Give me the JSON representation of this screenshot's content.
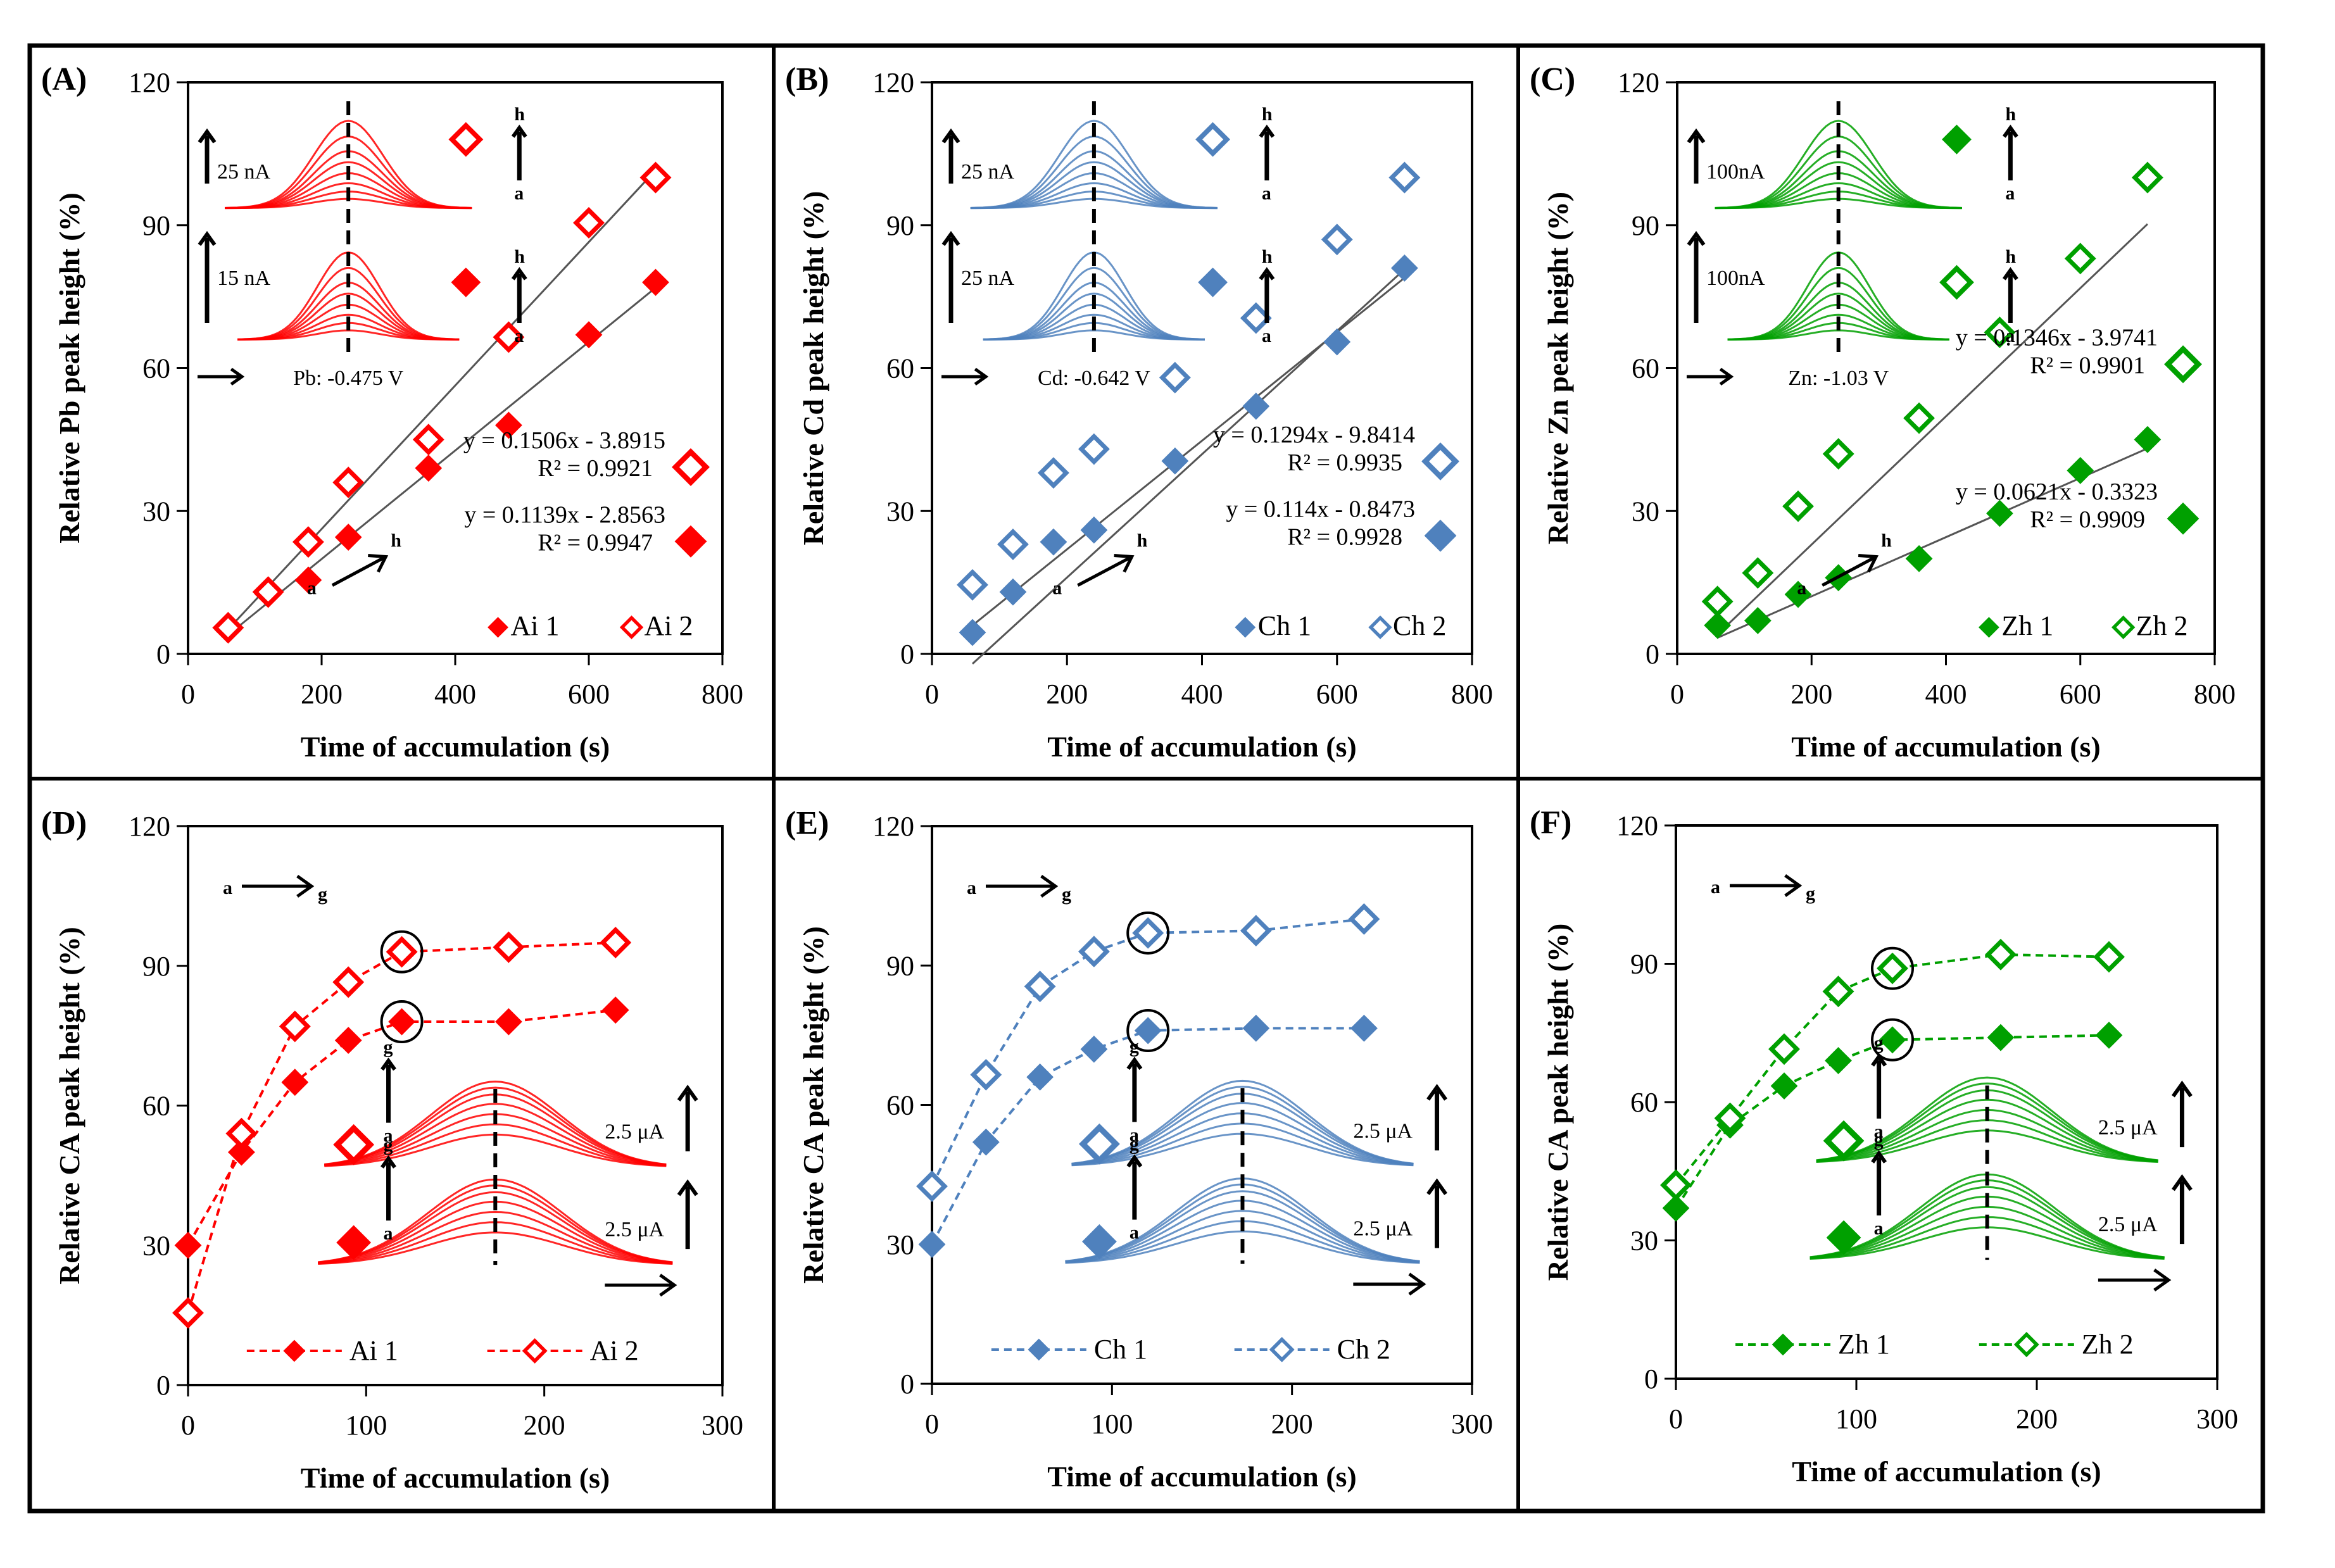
{
  "figure": {
    "colors": {
      "red": "#ff0000",
      "blue": "#4f81bd",
      "green": "#00a000",
      "trend": "#555555",
      "frame": "#000000"
    }
  },
  "chart_data": [
    {
      "id": "A",
      "type": "scatter",
      "panel_label": "(A)",
      "xlabel": "Time of accumulation (s)",
      "ylabel": "Relative Pb peak height  (%)",
      "xlim": [
        0,
        800
      ],
      "ylim": [
        0,
        120
      ],
      "xticks": [
        0,
        200,
        400,
        600,
        800
      ],
      "yticks": [
        0,
        30,
        60,
        90,
        120
      ],
      "color": "red",
      "connect": "trendline",
      "series": [
        {
          "name": "Ai 1",
          "marker": "filled-diamond",
          "x": [
            60,
            120,
            180,
            240,
            360,
            480,
            600,
            700
          ],
          "y": [
            5,
            12.5,
            15.5,
            24.5,
            39,
            48,
            67,
            78
          ],
          "fit": {
            "slope": 0.1139,
            "intercept": -2.8563,
            "equation": "y = 0.1139x - 2.8563",
            "r2": "R² = 0.9947"
          }
        },
        {
          "name": "Ai 2",
          "marker": "open-diamond",
          "x": [
            60,
            120,
            180,
            240,
            360,
            480,
            600,
            700
          ],
          "y": [
            5.5,
            13,
            23.5,
            36,
            45,
            66.5,
            90.5,
            100
          ],
          "fit": {
            "slope": 0.1506,
            "intercept": -3.8915,
            "equation": "y = 0.1506x - 3.8915",
            "r2": "R² = 0.9921"
          }
        }
      ],
      "inset": {
        "top_scale": "25 nA",
        "bottom_scale": "15 nA",
        "top_marker": "open-diamond",
        "bottom_marker": "filled-diamond",
        "range_start": "a",
        "range_end": "h",
        "peak_label": "Pb: -0.475 V"
      },
      "arrow_labels": {
        "start": "a",
        "end": "h"
      },
      "legend_position": "bottom-right"
    },
    {
      "id": "B",
      "type": "scatter",
      "panel_label": "(B)",
      "xlabel": "Time of accumulation (s)",
      "ylabel": "Relative Cd peak height  (%)",
      "xlim": [
        0,
        800
      ],
      "ylim": [
        0,
        120
      ],
      "xticks": [
        0,
        200,
        400,
        600,
        800
      ],
      "yticks": [
        0,
        30,
        60,
        90,
        120
      ],
      "color": "blue",
      "connect": "trendline",
      "series": [
        {
          "name": "Ch 1",
          "marker": "filled-diamond",
          "x": [
            60,
            120,
            180,
            240,
            360,
            480,
            600,
            700
          ],
          "y": [
            4.5,
            13,
            23.5,
            26,
            40.5,
            52,
            65.5,
            81
          ],
          "fit": {
            "slope": 0.114,
            "intercept": -0.8473,
            "equation": "y = 0.114x - 0.8473",
            "r2": "R² = 0.9928"
          }
        },
        {
          "name": "Ch 2",
          "marker": "open-diamond",
          "x": [
            60,
            120,
            180,
            240,
            360,
            480,
            600,
            700
          ],
          "y": [
            14.5,
            23,
            38,
            43,
            58,
            70.5,
            87,
            100
          ],
          "fit": {
            "slope": 0.1294,
            "intercept": -9.8414,
            "equation": "y = 0.1294x - 9.8414",
            "r2": "R² = 0.9935"
          }
        }
      ],
      "inset": {
        "top_scale": "25 nA",
        "bottom_scale": "25 nA",
        "top_marker": "open-diamond",
        "bottom_marker": "filled-diamond",
        "range_start": "a",
        "range_end": "h",
        "peak_label": "Cd: -0.642 V"
      },
      "arrow_labels": {
        "start": "a",
        "end": "h"
      },
      "legend_position": "bottom-right"
    },
    {
      "id": "C",
      "type": "scatter",
      "panel_label": "(C)",
      "xlabel": "Time of accumulation (s)",
      "ylabel": "Relative Zn peak height  (%)",
      "xlim": [
        0,
        800
      ],
      "ylim": [
        0,
        120
      ],
      "xticks": [
        0,
        200,
        400,
        600,
        800
      ],
      "yticks": [
        0,
        30,
        60,
        90,
        120
      ],
      "color": "green",
      "connect": "trendline",
      "series": [
        {
          "name": "Zh 1",
          "marker": "filled-diamond",
          "x": [
            60,
            120,
            180,
            240,
            360,
            480,
            600,
            700
          ],
          "y": [
            6,
            7,
            12.5,
            16,
            20,
            29.5,
            38.5,
            45
          ],
          "fit": {
            "slope": 0.0621,
            "intercept": -0.3323,
            "equation": "y = 0.0621x - 0.3323",
            "r2": "R² = 0.9909"
          }
        },
        {
          "name": "Zh 2",
          "marker": "open-diamond",
          "x": [
            60,
            120,
            180,
            240,
            360,
            480,
            600,
            700
          ],
          "y": [
            11,
            17,
            31,
            42,
            49.5,
            67.5,
            83,
            100
          ],
          "fit": {
            "slope": 0.1346,
            "intercept": -3.9741,
            "equation": "y = 0.1346x - 3.9741",
            "r2": "R² = 0.9901"
          }
        }
      ],
      "inset": {
        "top_scale": "100nA",
        "bottom_scale": "100nA",
        "top_marker": "filled-diamond",
        "bottom_marker": "open-diamond",
        "range_start": "a",
        "range_end": "h",
        "peak_label": "Zn: -1.03 V"
      },
      "arrow_labels": {
        "start": "a",
        "end": "h"
      },
      "legend_position": "bottom-right"
    },
    {
      "id": "D",
      "type": "line",
      "panel_label": "(D)",
      "xlabel": "Time of accumulation (s)",
      "ylabel": "Relative CA peak height  (%)",
      "xlim": [
        0,
        300
      ],
      "ylim": [
        0,
        120
      ],
      "xticks": [
        0,
        100,
        200,
        300
      ],
      "yticks": [
        0,
        30,
        60,
        90,
        120
      ],
      "color": "red",
      "connect": "dashed",
      "circled_x": 120,
      "series": [
        {
          "name": "Ai 1",
          "marker": "filled-diamond",
          "x": [
            0,
            30,
            60,
            90,
            120,
            180,
            240
          ],
          "y": [
            30,
            50,
            65,
            74,
            78,
            78,
            80.5
          ]
        },
        {
          "name": "Ai 2",
          "marker": "open-diamond",
          "x": [
            0,
            30,
            60,
            90,
            120,
            180,
            240
          ],
          "y": [
            15.5,
            54,
            77,
            86.5,
            93,
            94,
            95
          ]
        }
      ],
      "inset": {
        "top_scale": "2.5 μA",
        "bottom_scale": "2.5 μA",
        "top_marker": "open-diamond",
        "bottom_marker": "filled-diamond",
        "range_start": "a",
        "range_end": "g"
      },
      "arrow_labels": {
        "start": "a",
        "end": "g"
      },
      "legend_position": "bottom"
    },
    {
      "id": "E",
      "type": "line",
      "panel_label": "(E)",
      "xlabel": "Time of accumulation (s)",
      "ylabel": "Relative CA peak height  (%)",
      "xlim": [
        0,
        300
      ],
      "ylim": [
        0,
        120
      ],
      "xticks": [
        0,
        100,
        200,
        300
      ],
      "yticks": [
        0,
        30,
        60,
        90,
        120
      ],
      "color": "blue",
      "connect": "dashed",
      "circled_x": 120,
      "series": [
        {
          "name": "Ch 1",
          "marker": "filled-diamond",
          "x": [
            0,
            30,
            60,
            90,
            120,
            180,
            240
          ],
          "y": [
            30,
            52,
            66,
            72,
            76,
            76.5,
            76.5
          ]
        },
        {
          "name": "Ch 2",
          "marker": "open-diamond",
          "x": [
            0,
            30,
            60,
            90,
            120,
            180,
            240
          ],
          "y": [
            42.5,
            66.5,
            85.5,
            93,
            97,
            97.5,
            100
          ]
        }
      ],
      "inset": {
        "top_scale": "2.5 μA",
        "bottom_scale": "2.5 μA",
        "top_marker": "open-diamond",
        "bottom_marker": "filled-diamond",
        "range_start": "a",
        "range_end": "g"
      },
      "arrow_labels": {
        "start": "a",
        "end": "g"
      },
      "legend_position": "bottom"
    },
    {
      "id": "F",
      "type": "line",
      "panel_label": "(F)",
      "xlabel": "Time of accumulation (s)",
      "ylabel": "Relative CA peak height  (%)",
      "xlim": [
        0,
        300
      ],
      "ylim": [
        0,
        120
      ],
      "xticks": [
        0,
        100,
        200,
        300
      ],
      "yticks": [
        0,
        30,
        60,
        90,
        120
      ],
      "color": "green",
      "connect": "dashed",
      "circled_x": 120,
      "series": [
        {
          "name": "Zh 1",
          "marker": "filled-diamond",
          "x": [
            0,
            30,
            60,
            90,
            120,
            180,
            240
          ],
          "y": [
            37,
            55,
            63.5,
            69,
            73.5,
            74,
            74.5
          ]
        },
        {
          "name": "Zh 2",
          "marker": "open-diamond",
          "x": [
            0,
            30,
            60,
            90,
            120,
            180,
            240
          ],
          "y": [
            42,
            56.5,
            71.5,
            84,
            89,
            92,
            91.5
          ]
        }
      ],
      "inset": {
        "top_scale": "2.5 μA",
        "bottom_scale": "2.5 μA",
        "top_marker": "open-diamond",
        "bottom_marker": "filled-diamond",
        "range_start": "a",
        "range_end": "g"
      },
      "arrow_labels": {
        "start": "a",
        "end": "g"
      },
      "legend_position": "bottom"
    }
  ]
}
